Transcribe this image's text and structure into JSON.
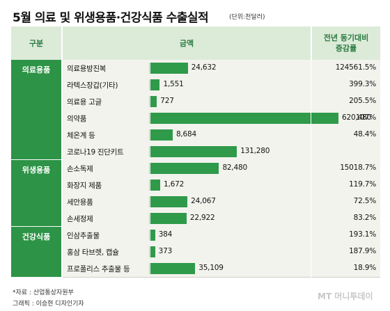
{
  "header": {
    "title": "5월 의료 및 위생용품·건강식품 수출실적",
    "unit_note": "(단위:천달러)"
  },
  "table_header": {
    "col_category": "구분",
    "col_amount": "금액",
    "col_growth": "전년 동기대비 증감률"
  },
  "colors": {
    "accent": "#2f9a4a",
    "header_bg": "#dcebd8",
    "category_bg": "#2d9346"
  },
  "chart_data": {
    "type": "bar",
    "orientation": "horizontal",
    "groups": [
      {
        "name": "의료용품",
        "items": [
          {
            "name": "의료용방진복",
            "value": 24632,
            "value_label": "24,632",
            "growth": "124561.5%"
          },
          {
            "name": "라텍스장갑(기타)",
            "value": 1551,
            "value_label": "1,551",
            "growth": "399.3%"
          },
          {
            "name": "의료용 고글",
            "value": 727,
            "value_label": "727",
            "growth": "205.5%"
          },
          {
            "name": "의약품",
            "value": 620480,
            "value_label": "620,480",
            "growth": "107%"
          },
          {
            "name": "체온계 등",
            "value": 8684,
            "value_label": "8,684",
            "growth": "48.4%"
          },
          {
            "name": "코로나19 진단키트",
            "value": 131280,
            "value_label": "131,280",
            "growth": ""
          }
        ]
      },
      {
        "name": "위생용품",
        "items": [
          {
            "name": "손소독제",
            "value": 82480,
            "value_label": "82,480",
            "growth": "15018.7%"
          },
          {
            "name": "화장지 제품",
            "value": 1672,
            "value_label": "1,672",
            "growth": "119.7%"
          },
          {
            "name": "세안용품",
            "value": 24067,
            "value_label": "24,067",
            "growth": "72.5%"
          },
          {
            "name": "손세정제",
            "value": 22922,
            "value_label": "22,922",
            "growth": "83.2%"
          }
        ]
      },
      {
        "name": "건강식품",
        "items": [
          {
            "name": "인삼추출물",
            "value": 384,
            "value_label": "384",
            "growth": "193.1%"
          },
          {
            "name": "홍삼 타브렛, 캡슐",
            "value": 373,
            "value_label": "373",
            "growth": "187.9%"
          },
          {
            "name": "프로폴리스 추출물 등",
            "value": 35109,
            "value_label": "35,109",
            "growth": "18.9%"
          }
        ]
      }
    ]
  },
  "footer": {
    "source": "*자료 : 산업통상자원부",
    "graphic": "그래픽 : 이승현 디자인기자",
    "watermark": "MT 머니투데이"
  }
}
